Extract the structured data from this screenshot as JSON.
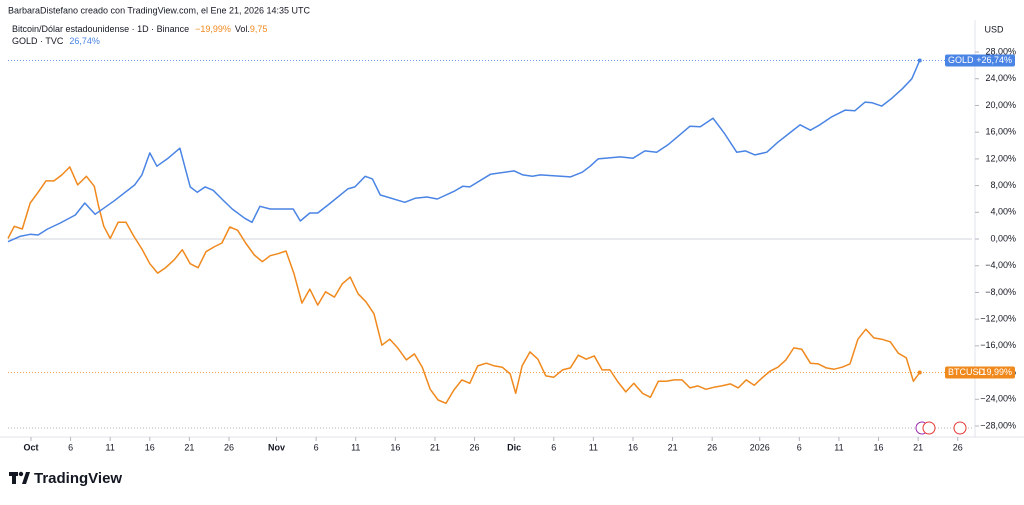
{
  "header": {
    "credit": "BarbaraDistefano creado con TradingView.com, el Ene 21, 2026 14:35 UTC"
  },
  "footer": {
    "brand": "TradingView"
  },
  "chart_data": {
    "type": "line",
    "currency": "USD",
    "xlim": [
      -2.9,
      118.8
    ],
    "ylim": [
      -28.6,
      32.8
    ],
    "zero_line": true,
    "xticks": [
      {
        "value": 0,
        "label": "Oct"
      },
      {
        "value": 5,
        "label": "6"
      },
      {
        "value": 10,
        "label": "11"
      },
      {
        "value": 15,
        "label": "16"
      },
      {
        "value": 20,
        "label": "21"
      },
      {
        "value": 25,
        "label": "26"
      },
      {
        "value": 31,
        "label": "Nov"
      },
      {
        "value": 36,
        "label": "6"
      },
      {
        "value": 41,
        "label": "11"
      },
      {
        "value": 46,
        "label": "16"
      },
      {
        "value": 51,
        "label": "21"
      },
      {
        "value": 56,
        "label": "26"
      },
      {
        "value": 61,
        "label": "Dic"
      },
      {
        "value": 66,
        "label": "6"
      },
      {
        "value": 71,
        "label": "11"
      },
      {
        "value": 76,
        "label": "16"
      },
      {
        "value": 81,
        "label": "21"
      },
      {
        "value": 86,
        "label": "26"
      },
      {
        "value": 92,
        "label": "2026"
      },
      {
        "value": 97,
        "label": "6"
      },
      {
        "value": 102,
        "label": "11"
      },
      {
        "value": 107,
        "label": "16"
      },
      {
        "value": 112,
        "label": "21"
      },
      {
        "value": 117,
        "label": "26"
      }
    ],
    "yticks": [
      {
        "value": 28,
        "label": "28,00%"
      },
      {
        "value": 24,
        "label": "24,00%"
      },
      {
        "value": 20,
        "label": "20,00%"
      },
      {
        "value": 16,
        "label": "16,00%"
      },
      {
        "value": 12,
        "label": "12,00%"
      },
      {
        "value": 8,
        "label": "8,00%"
      },
      {
        "value": 4,
        "label": "4,00%"
      },
      {
        "value": 0,
        "label": "0,00%"
      },
      {
        "value": -4,
        "label": "−4,00%"
      },
      {
        "value": -8,
        "label": "−8,00%"
      },
      {
        "value": -12,
        "label": "−12,00%"
      },
      {
        "value": -16,
        "label": "−16,00%"
      },
      {
        "value": -20,
        "label": "−20,00%"
      },
      {
        "value": -24,
        "label": "−24,00%"
      },
      {
        "value": -28,
        "label": "−28,00%"
      }
    ],
    "series": [
      {
        "name": "Bitcoin/Dólar estadounidense · 1D · Binance",
        "tag": "BTCUSD",
        "legend_value": "−19,99%",
        "tag_value": "−19,99%",
        "volume_label": "Vol.",
        "volume": "9,75",
        "color": "#f0891d",
        "x": [
          -2.9,
          -2.1,
          -1.1,
          -0.1,
          0.9,
          1.9,
          2.9,
          3.9,
          4.9,
          5.9,
          7.0,
          8.0,
          8.5,
          9.2,
          10.0,
          11.0,
          12.0,
          13.0,
          14.0,
          15.0,
          16.0,
          17.0,
          18.1,
          19.1,
          20.1,
          21.1,
          22.1,
          23.1,
          24.1,
          25.1,
          26.1,
          27.1,
          28.2,
          29.2,
          30.2,
          31.2,
          32.2,
          33.2,
          34.2,
          35.2,
          36.2,
          37.2,
          38.3,
          39.3,
          40.3,
          41.3,
          42.3,
          43.3,
          44.3,
          45.3,
          46.3,
          47.4,
          48.4,
          49.4,
          50.4,
          51.4,
          52.4,
          53.4,
          54.4,
          55.4,
          56.4,
          57.5,
          58.5,
          59.5,
          60.5,
          61.2,
          62.0,
          63.0,
          64.0,
          65.0,
          66.0,
          67.1,
          68.1,
          69.1,
          70.1,
          71.1,
          72.1,
          73.1,
          74.1,
          75.1,
          76.1,
          77.2,
          78.2,
          79.2,
          80.2,
          81.2,
          82.2,
          83.2,
          84.2,
          85.2,
          86.2,
          87.2,
          88.3,
          89.3,
          90.3,
          91.3,
          92.3,
          93.3,
          94.3,
          95.3,
          96.3,
          97.3,
          98.4,
          99.4,
          100.4,
          101.4,
          102.4,
          103.4,
          104.4,
          105.4,
          106.4,
          107.4,
          108.5,
          109.5,
          110.5,
          111.4,
          112.2
        ],
        "values": [
          0.1,
          1.9,
          1.5,
          5.4,
          7.0,
          8.7,
          8.7,
          9.6,
          10.8,
          8.1,
          9.4,
          7.9,
          5.1,
          1.9,
          0.1,
          2.5,
          2.5,
          0.4,
          -1.5,
          -3.7,
          -5.1,
          -4.3,
          -3.1,
          -1.6,
          -3.7,
          -4.3,
          -1.9,
          -1.2,
          -0.6,
          1.8,
          1.3,
          -0.6,
          -2.4,
          -3.4,
          -2.5,
          -2.2,
          -1.8,
          -5.2,
          -9.6,
          -7.5,
          -9.9,
          -7.9,
          -8.7,
          -6.7,
          -5.7,
          -8.2,
          -9.4,
          -11.2,
          -15.9,
          -15.0,
          -16.3,
          -18.1,
          -17.2,
          -19.2,
          -22.5,
          -24.1,
          -24.6,
          -22.6,
          -21.1,
          -21.6,
          -19.0,
          -18.6,
          -19.0,
          -19.2,
          -20.2,
          -23.1,
          -19.0,
          -16.9,
          -18.0,
          -20.5,
          -20.7,
          -19.6,
          -19.3,
          -17.4,
          -18.0,
          -17.5,
          -19.6,
          -19.6,
          -21.4,
          -22.9,
          -21.6,
          -23.1,
          -23.7,
          -21.3,
          -21.3,
          -21.1,
          -21.1,
          -22.3,
          -22.0,
          -22.5,
          -22.2,
          -22.0,
          -21.7,
          -22.3,
          -21.1,
          -21.9,
          -20.8,
          -19.8,
          -19.2,
          -18.1,
          -16.3,
          -16.5,
          -18.6,
          -18.7,
          -19.3,
          -19.5,
          -19.2,
          -18.7,
          -15.0,
          -13.5,
          -14.8,
          -15.0,
          -15.4,
          -17.1,
          -17.8,
          -21.3,
          -19.99
        ]
      },
      {
        "name": "GOLD · TVC",
        "tag": "GOLD",
        "legend_value": "26,74%",
        "tag_value": "+26,74%",
        "color": "#4a84e4",
        "x": [
          -2.9,
          -1.4,
          -0.1,
          0.9,
          2.1,
          3.7,
          5.6,
          6.8,
          8.1,
          10.6,
          13.1,
          14.0,
          15.0,
          15.9,
          17.2,
          18.8,
          20.1,
          21.0,
          22.0,
          23.0,
          24.1,
          25.4,
          27.0,
          27.9,
          28.9,
          30.2,
          33.1,
          34.0,
          35.2,
          36.2,
          37.5,
          40.0,
          40.9,
          42.2,
          43.1,
          44.1,
          47.2,
          48.5,
          50.0,
          51.3,
          53.5,
          54.5,
          55.4,
          58.0,
          61.0,
          62.1,
          63.3,
          64.3,
          68.1,
          69.6,
          70.6,
          71.6,
          74.4,
          76.0,
          77.5,
          79.0,
          80.4,
          81.9,
          83.2,
          84.5,
          86.1,
          87.5,
          89.1,
          90.2,
          91.4,
          92.9,
          94.3,
          95.8,
          97.1,
          98.4,
          99.6,
          101.1,
          102.8,
          104.0,
          105.3,
          106.2,
          107.4,
          108.7,
          110.0,
          111.2,
          112.2
        ],
        "values": [
          -0.4,
          0.4,
          0.7,
          0.6,
          1.5,
          2.4,
          3.6,
          5.4,
          3.7,
          5.8,
          8.1,
          9.6,
          12.9,
          10.9,
          12.0,
          13.6,
          7.8,
          7.0,
          7.8,
          7.3,
          6.0,
          4.5,
          3.1,
          2.5,
          4.9,
          4.5,
          4.5,
          2.7,
          3.9,
          3.9,
          5.1,
          7.5,
          7.8,
          9.4,
          9.0,
          6.6,
          5.5,
          6.1,
          6.3,
          6.0,
          7.2,
          7.9,
          7.8,
          9.7,
          10.2,
          9.6,
          9.4,
          9.6,
          9.3,
          10.0,
          10.9,
          12.0,
          12.3,
          12.1,
          13.2,
          13.0,
          14.1,
          15.6,
          16.9,
          16.8,
          18.1,
          15.9,
          13.0,
          13.2,
          12.6,
          13.0,
          14.5,
          15.9,
          17.1,
          16.3,
          17.1,
          18.3,
          19.3,
          19.2,
          20.5,
          20.4,
          19.9,
          21.1,
          22.5,
          24.0,
          26.74
        ]
      }
    ]
  }
}
